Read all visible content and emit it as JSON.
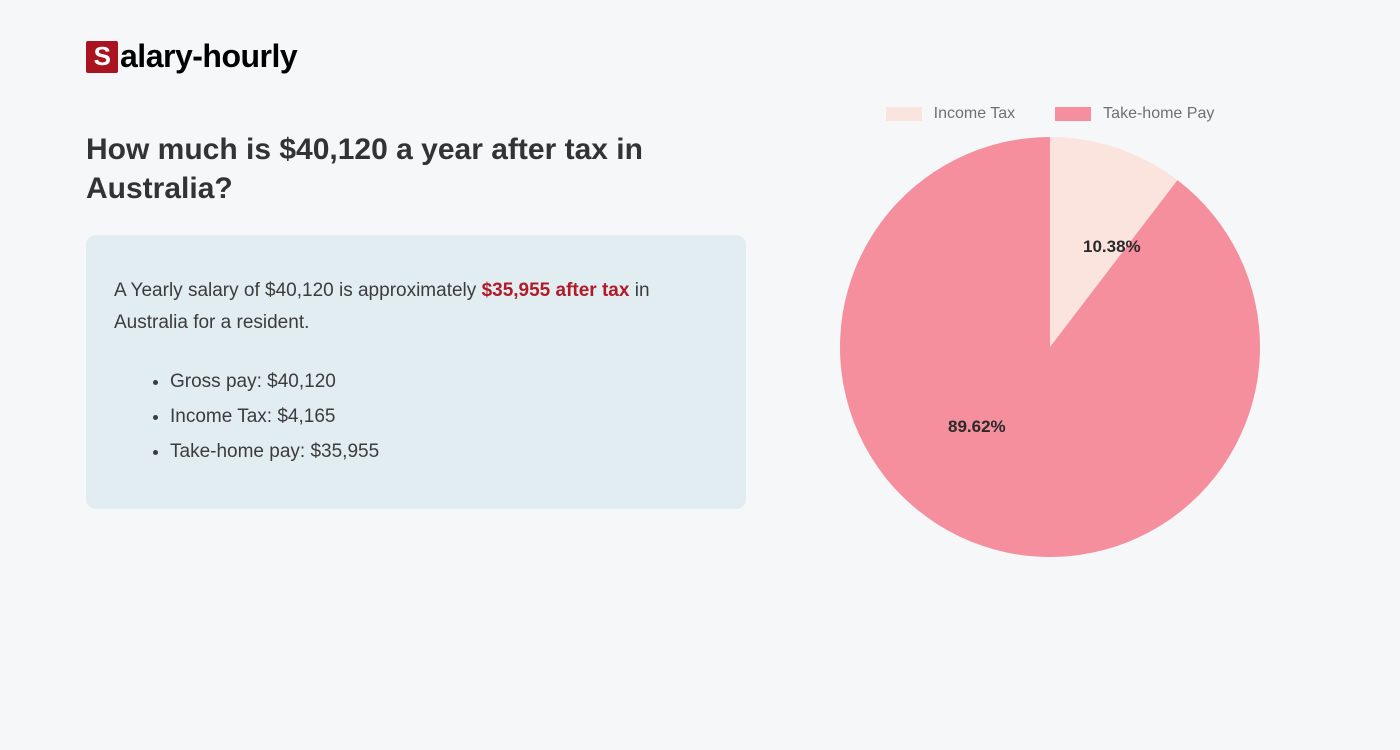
{
  "logo": {
    "first_letter": "S",
    "rest": "alary-hourly"
  },
  "heading": "How much is $40,120 a year after tax in Australia?",
  "summary": {
    "prefix": "A Yearly salary of $40,120 is approximately ",
    "highlight": "$35,955 after tax",
    "suffix": " in Australia for a resident."
  },
  "details": [
    "Gross pay: $40,120",
    "Income Tax: $4,165",
    "Take-home pay: $35,955"
  ],
  "chart": {
    "type": "pie",
    "radius": 210,
    "background_color": "#f5f7f9",
    "slices": [
      {
        "label": "Income Tax",
        "value": 10.38,
        "display": "10.38%",
        "color": "#fce4de"
      },
      {
        "label": "Take-home Pay",
        "value": 89.62,
        "display": "89.62%",
        "color": "#f58e9d"
      }
    ],
    "legend_text_color": "#707070",
    "label_fontsize": 17,
    "label_fontweight": 700,
    "label_color": "#2a2a2a"
  }
}
